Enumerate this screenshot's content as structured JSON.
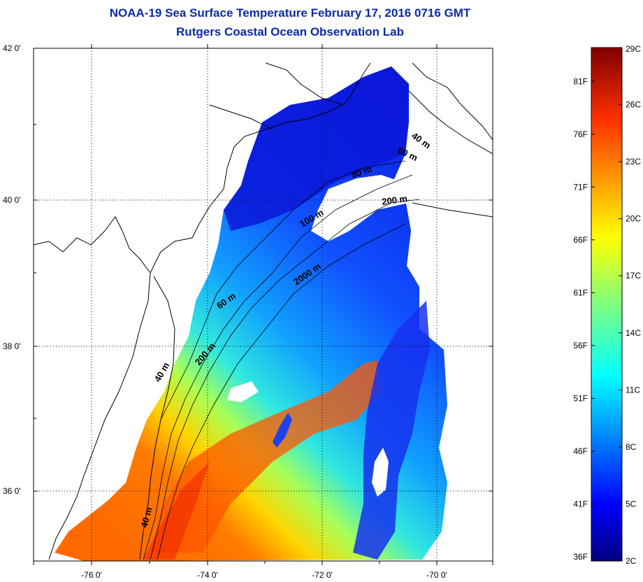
{
  "title": "NOAA-19 Sea Surface Temperature February 17, 2016 0716 GMT",
  "subtitle": "Rutgers Coastal Ocean Observation Lab",
  "map": {
    "lat_labels": [
      "42 0'",
      "40 0'",
      "38 0'",
      "36 0'"
    ],
    "lon_labels": [
      "-76 0'",
      "-74 0'",
      "-72 0'",
      "-70 0'"
    ],
    "contour_labels": [
      "40 m",
      "60 m",
      "80 m",
      "200 m",
      "100 m",
      "2000 m",
      "60 m",
      "200 m",
      "40 m",
      "40 m"
    ],
    "grid": "dotted"
  },
  "colorbar": {
    "fahrenheit": [
      "81F",
      "76F",
      "71F",
      "66F",
      "61F",
      "56F",
      "51F",
      "46F",
      "41F",
      "36F"
    ],
    "celsius": [
      "29C",
      "26C",
      "23C",
      "20C",
      "17C",
      "14C",
      "11C",
      "8C",
      "5C",
      "2C"
    ],
    "colormap": "jet",
    "colors": [
      "#00007f",
      "#0000ff",
      "#007fff",
      "#00ffff",
      "#7fff7f",
      "#ffff00",
      "#ff7f00",
      "#ff0000",
      "#7f0000"
    ]
  }
}
